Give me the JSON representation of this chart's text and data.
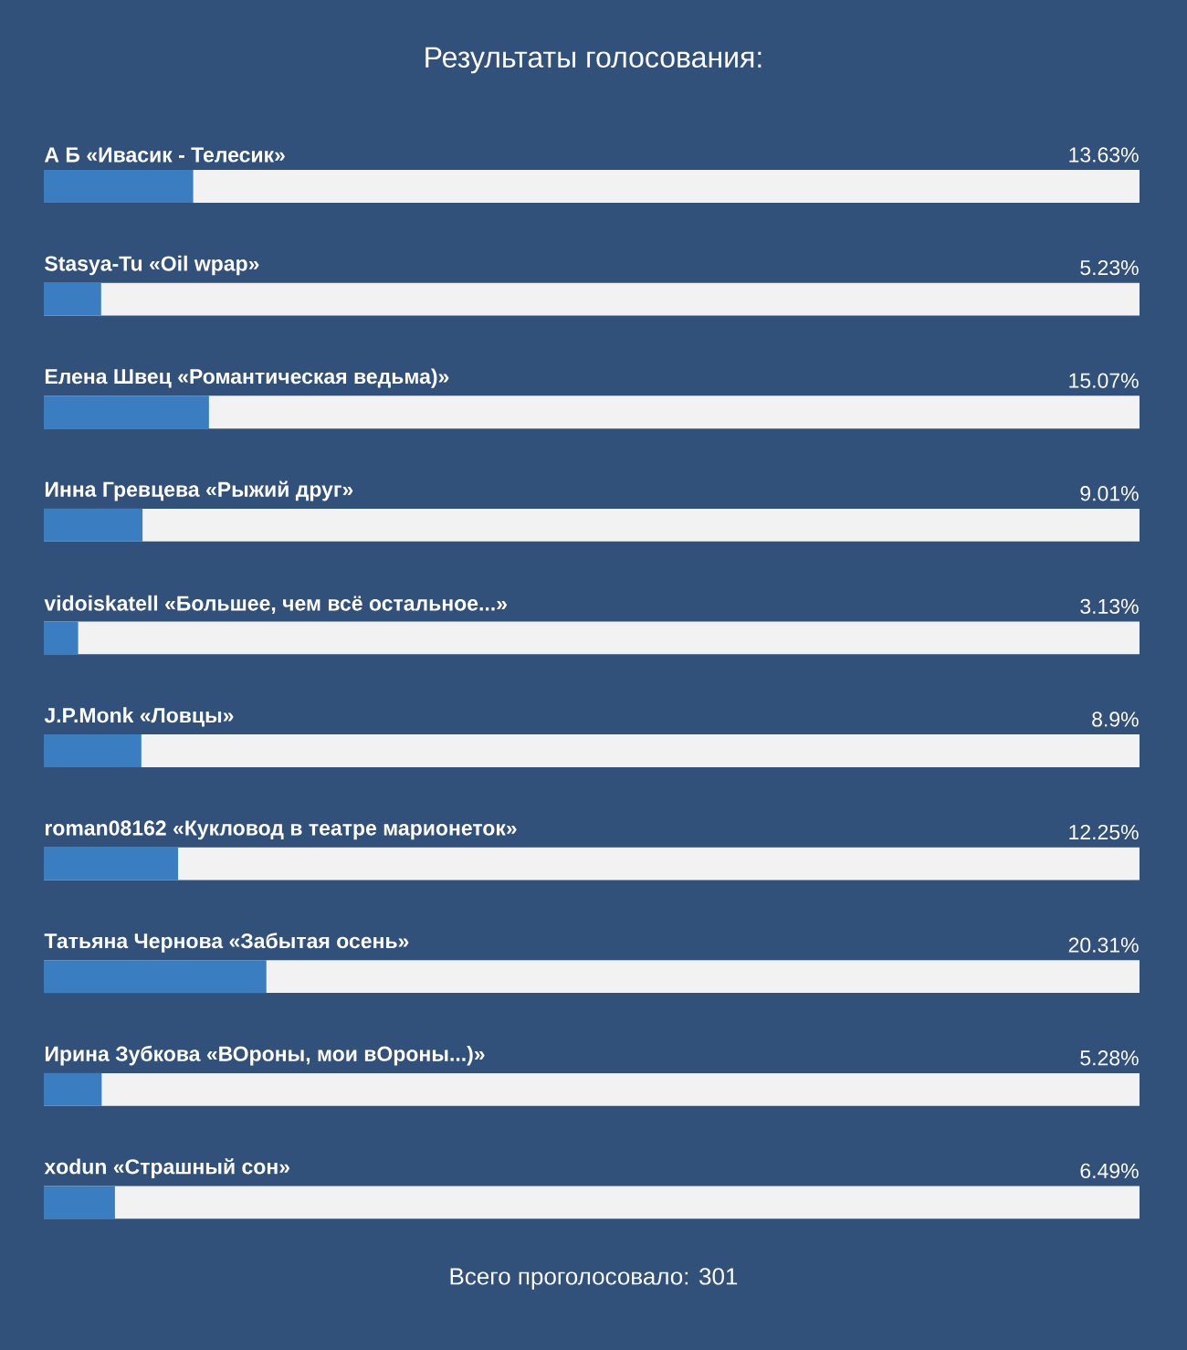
{
  "chart_data": {
    "type": "bar",
    "orientation": "horizontal",
    "title": "Результаты голосования:",
    "categories": [
      "А Б «Ивасик - Телесик»",
      "Stasya-Tu «Oil wpap»",
      "Елена Швец «Романтическая ведьма)»",
      "Инна Гревцева «Рыжий друг»",
      "vidoiskatell «Большее, чем всё остальное...»",
      "J.P.Monk «Ловцы»",
      "roman08162 «Кукловод в театре марионеток»",
      "Татьяна Чернова «Забытая осень»",
      "Ирина Зубкова «ВОроны, мои вОроны...)»",
      "xodun «Страшный сон»"
    ],
    "values": [
      13.63,
      5.23,
      15.07,
      9.01,
      3.13,
      8.9,
      12.25,
      20.31,
      5.28,
      6.49
    ],
    "value_labels": [
      "13.63%",
      "5.23%",
      "15.07%",
      "9.01%",
      "3.13%",
      "8.9%",
      "12.25%",
      "20.31%",
      "5.28%",
      "6.49%"
    ],
    "color": "#3a7dc0",
    "xlim": [
      0,
      100
    ],
    "tick_labels": false,
    "annotations": [
      "Всего проголосовало: 301"
    ]
  }
}
